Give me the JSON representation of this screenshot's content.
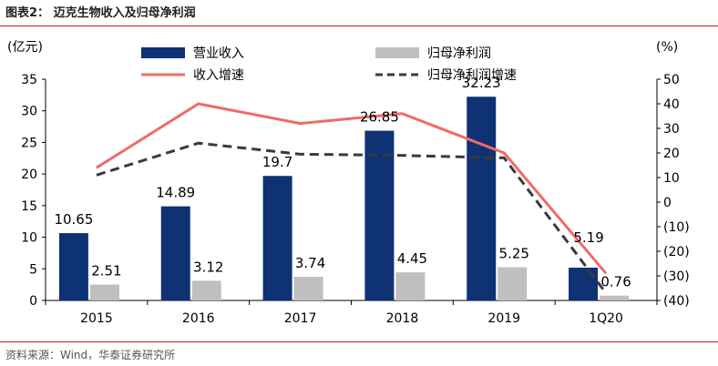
{
  "header": {
    "title": "图表2：  迈克生物收入及归母净利润"
  },
  "footer": {
    "source": "资料来源：Wind，华泰证券研究所"
  },
  "colors": {
    "rule": "#c0161c",
    "revenue_bar": "#0f3275",
    "profit_bar": "#bfbfbf",
    "revenue_growth_line": "#f06a6a",
    "profit_growth_line": "#3a3a3a"
  },
  "chart_data": {
    "type": "bar",
    "categories": [
      "2015",
      "2016",
      "2017",
      "2018",
      "2019",
      "1Q20"
    ],
    "y_left": {
      "unit_label": "(亿元)",
      "ticks": [
        "0",
        "5",
        "10",
        "15",
        "20",
        "25",
        "30",
        "35"
      ],
      "ylim": [
        0,
        35
      ]
    },
    "y_right": {
      "unit_label": "(%)",
      "ticks": [
        "(40)",
        "(30)",
        "(20)",
        "(10)",
        "0",
        "10",
        "20",
        "30",
        "40",
        "50"
      ],
      "ylim": [
        -40,
        50
      ]
    },
    "series": [
      {
        "name": "营业收入",
        "kind": "bar",
        "axis": "left",
        "color": "#0f3275",
        "values": [
          10.65,
          14.89,
          19.7,
          26.85,
          32.23,
          5.19
        ],
        "labels": [
          "10.65",
          "14.89",
          "19.7",
          "26.85",
          "32.23",
          "5.19"
        ]
      },
      {
        "name": "归母净利润",
        "kind": "bar",
        "axis": "left",
        "color": "#bfbfbf",
        "values": [
          2.51,
          3.12,
          3.74,
          4.45,
          5.25,
          0.76
        ],
        "labels": [
          "2.51",
          "3.12",
          "3.74",
          "4.45",
          "5.25",
          "0.76"
        ]
      },
      {
        "name": "收入增速",
        "kind": "line",
        "axis": "right",
        "color": "#f06a6a",
        "style": "solid",
        "values": [
          14,
          40,
          32,
          36,
          20,
          -29
        ]
      },
      {
        "name": "归母净利润增速",
        "kind": "line",
        "axis": "right",
        "color": "#3a3a3a",
        "style": "dashed",
        "values": [
          11,
          24,
          19.5,
          19,
          18,
          -37
        ]
      }
    ],
    "legend": "top",
    "grid": false
  }
}
